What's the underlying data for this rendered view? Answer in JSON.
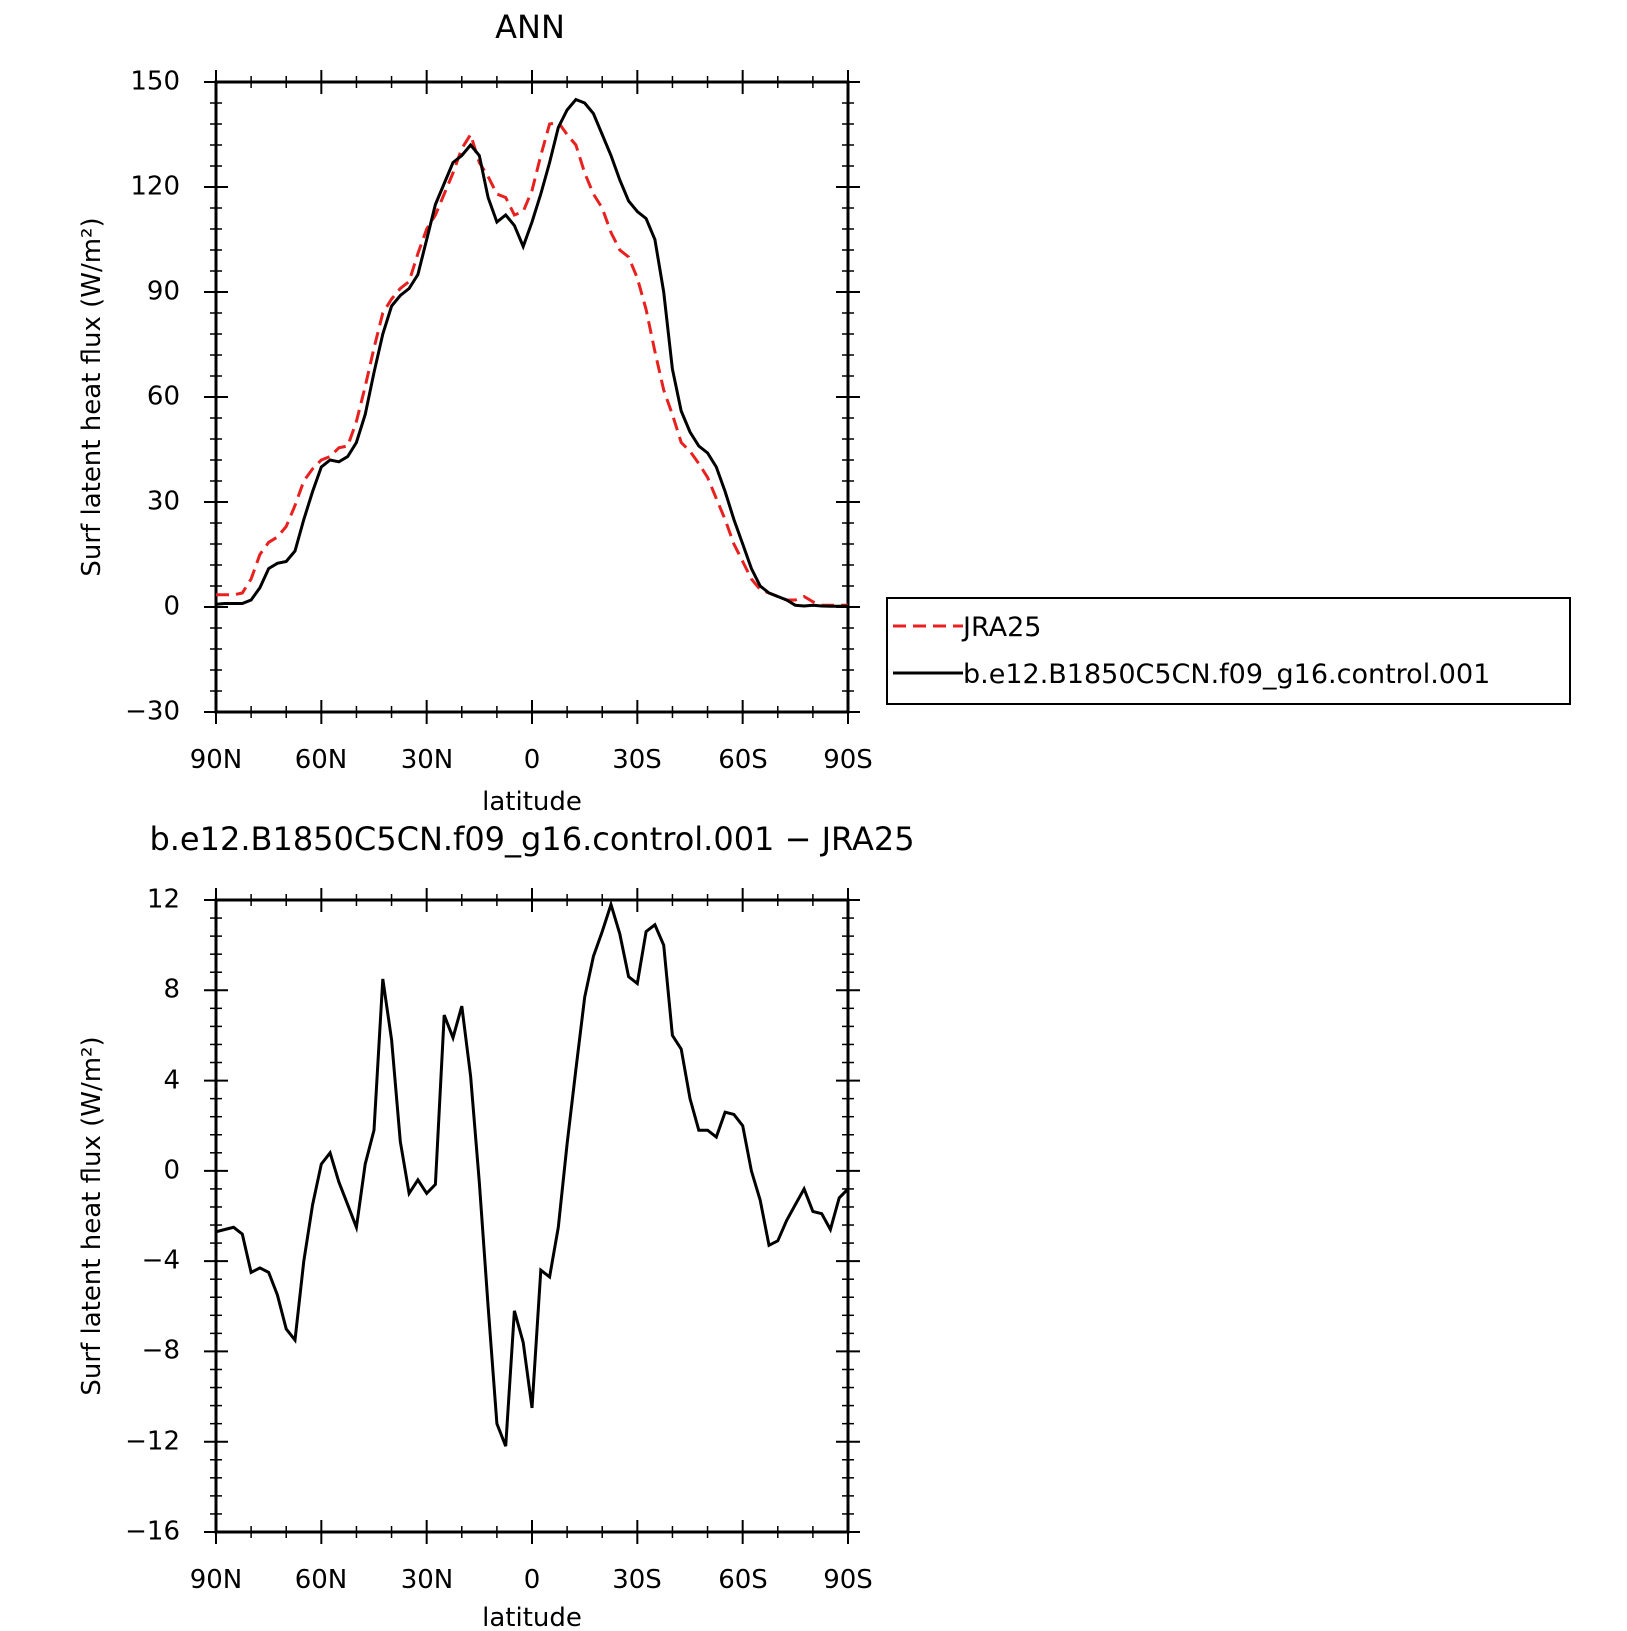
{
  "chart_data": [
    {
      "type": "line",
      "title": "ANN",
      "xlabel": "latitude",
      "ylabel": "Surf latent heat flux (W/m²)",
      "xlim": [
        90,
        -90
      ],
      "ylim": [
        -30,
        150
      ],
      "yticks": [
        -30,
        0,
        30,
        60,
        90,
        120,
        150
      ],
      "ytick_labels": [
        "−30",
        "0",
        "30",
        "60",
        "90",
        "120",
        "150"
      ],
      "xticks": [
        90,
        60,
        30,
        0,
        -30,
        -60,
        -90
      ],
      "xtick_labels": [
        "90N",
        "60N",
        "30N",
        "0",
        "30S",
        "60S",
        "90S"
      ],
      "legend_position": "right",
      "series": [
        {
          "name": "JRA25",
          "color": "#e8211f",
          "style": "dashed",
          "x": [
            90,
            87.5,
            85,
            82.5,
            80,
            77.5,
            75,
            72.5,
            70,
            67.5,
            65,
            62.5,
            60,
            57.5,
            55,
            52.5,
            50,
            47.5,
            45,
            42.5,
            40,
            37.5,
            35,
            32.5,
            30,
            27.5,
            25,
            22.5,
            20,
            17.5,
            15,
            12.5,
            10,
            7.5,
            5,
            2.5,
            0,
            -2.5,
            -5,
            -7.5,
            -10,
            -12.5,
            -15,
            -17.5,
            -20,
            -22.5,
            -25,
            -27.5,
            -30,
            -32.5,
            -35,
            -37.5,
            -40,
            -42.5,
            -45,
            -47.5,
            -50,
            -52.5,
            -55,
            -57.5,
            -60,
            -62.5,
            -65,
            -67.5,
            -70,
            -72.5,
            -75,
            -77.5,
            -80,
            -82.5,
            -85,
            -87.5,
            -90
          ],
          "y": [
            3.5,
            3.5,
            3.5,
            4,
            8,
            15,
            18.5,
            20,
            23,
            29,
            36,
            39.5,
            42,
            43,
            45.5,
            46,
            53,
            63,
            74,
            84,
            88,
            91,
            93,
            101,
            108,
            112,
            118,
            124,
            131,
            135,
            127,
            123,
            118,
            117,
            112,
            113,
            119,
            129,
            138,
            138.5,
            135,
            132,
            124,
            118,
            114,
            107,
            102,
            100,
            94,
            85,
            73,
            62,
            55,
            47,
            44.5,
            41,
            37,
            31,
            25,
            18,
            13,
            8,
            5,
            4,
            3,
            2,
            2,
            3,
            1.5,
            0.5,
            0.5,
            0.5,
            0.5
          ]
        },
        {
          "name": "b.e12.B1850C5CN.f09_g16.control.001",
          "color": "#000000",
          "style": "solid",
          "x": [
            90,
            87.5,
            85,
            82.5,
            80,
            77.5,
            75,
            72.5,
            70,
            67.5,
            65,
            62.5,
            60,
            57.5,
            55,
            52.5,
            50,
            47.5,
            45,
            42.5,
            40,
            37.5,
            35,
            32.5,
            30,
            27.5,
            25,
            22.5,
            20,
            17.5,
            15,
            12.5,
            10,
            7.5,
            5,
            2.5,
            0,
            -2.5,
            -5,
            -7.5,
            -10,
            -12.5,
            -15,
            -17.5,
            -20,
            -22.5,
            -25,
            -27.5,
            -30,
            -32.5,
            -35,
            -37.5,
            -40,
            -42.5,
            -45,
            -47.5,
            -50,
            -52.5,
            -55,
            -57.5,
            -60,
            -62.5,
            -65,
            -67.5,
            -70,
            -72.5,
            -75,
            -77.5,
            -80,
            -82.5,
            -85,
            -87.5,
            -90
          ],
          "y": [
            0.8,
            1,
            1,
            1,
            2,
            5.5,
            11,
            12.5,
            13,
            16,
            25,
            33,
            40,
            42,
            41.5,
            43,
            47,
            55,
            67,
            78,
            86,
            89,
            91,
            95,
            105,
            115,
            121,
            127,
            129,
            132,
            129,
            117,
            110,
            112,
            109,
            103,
            110,
            118,
            127,
            137,
            142,
            145,
            144,
            141,
            135,
            129,
            122,
            116,
            113,
            111,
            105,
            90,
            68,
            56,
            50,
            46,
            44,
            40,
            33,
            25,
            18,
            11,
            6,
            4,
            3,
            2,
            0.5,
            0.3,
            0.5,
            0.3,
            0.2,
            0.2,
            0.2
          ]
        }
      ]
    },
    {
      "type": "line",
      "title": "b.e12.B1850C5CN.f09_g16.control.001 − JRA25",
      "xlabel": "latitude",
      "ylabel": "Surf latent heat flux (W/m²)",
      "xlim": [
        90,
        -90
      ],
      "ylim": [
        -16,
        12
      ],
      "yticks": [
        -16,
        -12,
        -8,
        -4,
        0,
        4,
        8,
        12
      ],
      "ytick_labels": [
        "−16",
        "−12",
        "−8",
        "−4",
        "0",
        "4",
        "8",
        "12"
      ],
      "xticks": [
        90,
        60,
        30,
        0,
        -30,
        -60,
        -90
      ],
      "xtick_labels": [
        "90N",
        "60N",
        "30N",
        "0",
        "30S",
        "60S",
        "90S"
      ],
      "series": [
        {
          "color": "#000000",
          "style": "solid",
          "x": [
            90,
            87.5,
            85,
            82.5,
            80,
            77.5,
            75,
            72.5,
            70,
            67.5,
            65,
            62.5,
            60,
            57.5,
            55,
            52.5,
            50,
            47.5,
            45,
            42.5,
            40,
            37.5,
            35,
            32.5,
            30,
            27.5,
            25,
            22.5,
            20,
            17.5,
            15,
            12.5,
            10,
            7.5,
            5,
            2.5,
            0,
            -2.5,
            -5,
            -7.5,
            -10,
            -12.5,
            -15,
            -17.5,
            -20,
            -22.5,
            -25,
            -27.5,
            -30,
            -32.5,
            -35,
            -37.5,
            -40,
            -42.5,
            -45,
            -47.5,
            -50,
            -52.5,
            -55,
            -57.5,
            -60,
            -62.5,
            -65,
            -67.5,
            -70,
            -72.5,
            -75,
            -77.5,
            -80,
            -82.5,
            -85,
            -87.5,
            -90
          ],
          "y": [
            -2.7,
            -2.6,
            -2.5,
            -2.8,
            -4.5,
            -4.3,
            -4.5,
            -5.5,
            -7,
            -7.5,
            -4,
            -1.5,
            0.3,
            0.8,
            -0.5,
            -1.5,
            -2.5,
            0.3,
            1.8,
            8.5,
            5.8,
            1.3,
            -1,
            -0.4,
            -1,
            -0.6,
            6.9,
            5.9,
            7.3,
            4.2,
            -0.5,
            -6,
            -11.2,
            -12.2,
            -6.2,
            -7.6,
            -10.5,
            -4.4,
            -4.7,
            -2.5,
            1.2,
            4.5,
            7.7,
            9.5,
            10.6,
            11.8,
            10.5,
            8.6,
            8.3,
            10.6,
            10.9,
            10,
            6,
            5.4,
            3.2,
            1.8,
            1.8,
            1.5,
            2.6,
            2.5,
            2,
            0,
            -1.3,
            -3.3,
            -3.1,
            -2.2,
            -1.5,
            -0.8,
            -1.8,
            -1.9,
            -2.6,
            -1.2,
            -0.8
          ]
        }
      ]
    }
  ]
}
